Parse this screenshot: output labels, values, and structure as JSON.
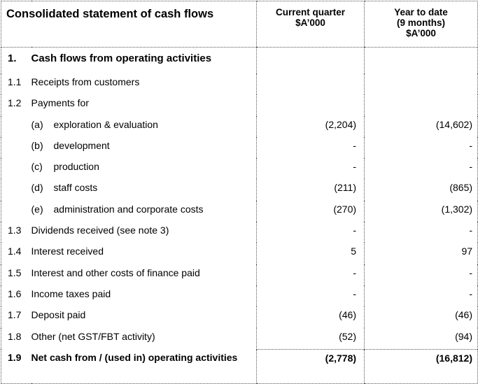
{
  "header": {
    "title": "Consolidated statement of cash flows",
    "col_current": [
      "Current quarter",
      "$A’000"
    ],
    "col_ytd": [
      "Year to date",
      "(9 months)",
      "$A’000"
    ]
  },
  "section": {
    "num": "1.",
    "label": "Cash flows from operating activities"
  },
  "rows": [
    {
      "num": "1.1",
      "label": "Receipts from customers",
      "cq": "",
      "ytd": ""
    },
    {
      "num": "1.2",
      "label": "Payments for",
      "cq": "",
      "ytd": ""
    },
    {
      "tag": "(a)",
      "label": "exploration & evaluation",
      "cq": "(2,204)",
      "ytd": "(14,602)"
    },
    {
      "tag": "(b)",
      "label": "development",
      "cq": "-",
      "ytd": "-"
    },
    {
      "tag": "(c)",
      "label": "production",
      "cq": "-",
      "ytd": "-"
    },
    {
      "tag": "(d)",
      "label": "staff costs",
      "cq": "(211)",
      "ytd": "(865)"
    },
    {
      "tag": "(e)",
      "label": "administration and corporate costs",
      "cq": "(270)",
      "ytd": "(1,302)"
    },
    {
      "num": "1.3",
      "label": "Dividends received (see note 3)",
      "cq": "-",
      "ytd": "-"
    },
    {
      "num": "1.4",
      "label": "Interest received",
      "cq": "5",
      "ytd": "97"
    },
    {
      "num": "1.5",
      "label": "Interest and other costs of finance paid",
      "cq": "-",
      "ytd": "-"
    },
    {
      "num": "1.6",
      "label": "Income taxes paid",
      "cq": "-",
      "ytd": "-"
    },
    {
      "num": "1.7",
      "label": "Deposit paid",
      "cq": "(46)",
      "ytd": "(46)"
    },
    {
      "num": "1.8",
      "label": "Other (net GST/FBT activity)",
      "cq": "(52)",
      "ytd": "(94)"
    }
  ],
  "total": {
    "num": "1.9",
    "label": "Net cash from / (used in) operating activities",
    "cq": "(2,778)",
    "ytd": "(16,812)"
  }
}
